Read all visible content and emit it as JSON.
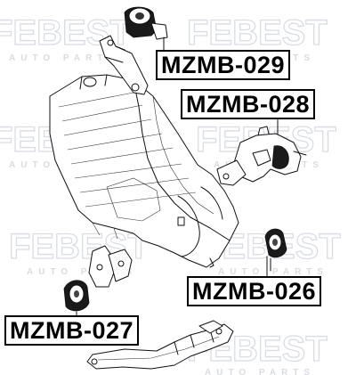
{
  "watermark": {
    "brand": "FEBEST",
    "tagline": "AUTO PARTS"
  },
  "parts": [
    {
      "id": "mzmb-029",
      "label": "MZMB-029"
    },
    {
      "id": "mzmb-028",
      "label": "MZMB-028"
    },
    {
      "id": "mzmb-026",
      "label": "MZMB-026"
    },
    {
      "id": "mzmb-027",
      "label": "MZMB-027"
    }
  ]
}
